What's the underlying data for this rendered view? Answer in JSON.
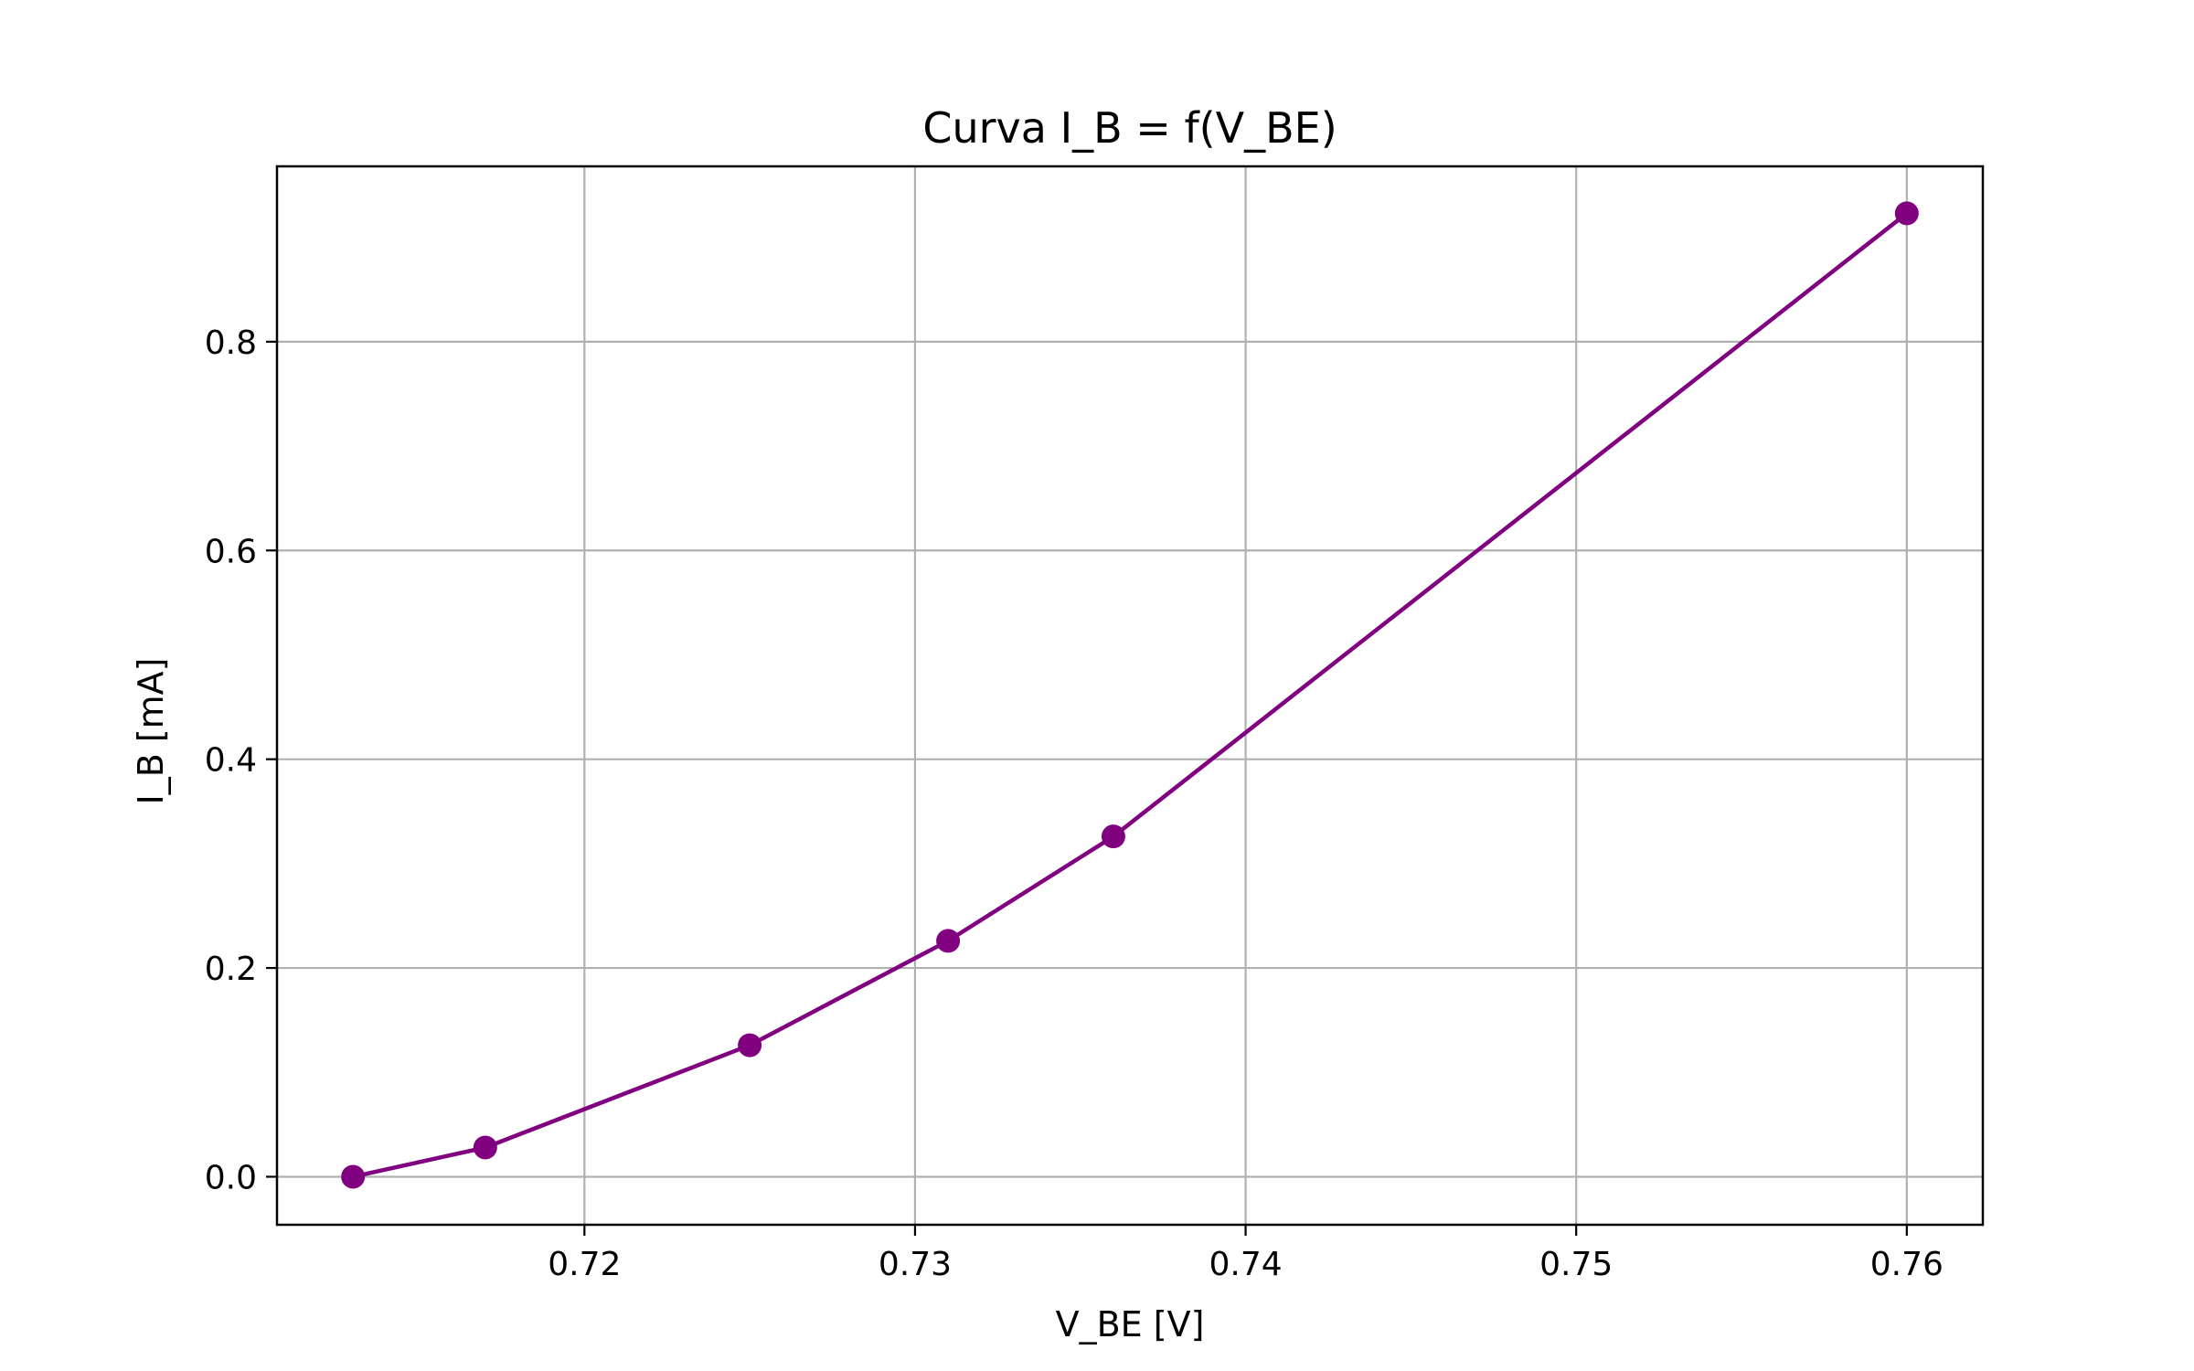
{
  "chart_data": {
    "type": "line",
    "title": "Curva I_B = f(V_BE)",
    "xlabel": "V_BE [V]",
    "ylabel": "I_B [mA]",
    "xlim": [
      0.7107,
      0.7623
    ],
    "ylim": [
      -0.046,
      0.968
    ],
    "xticks": [
      0.72,
      0.73,
      0.74,
      0.75,
      0.76
    ],
    "xtick_labels": [
      "0.72",
      "0.73",
      "0.74",
      "0.75",
      "0.76"
    ],
    "yticks": [
      0.0,
      0.2,
      0.4,
      0.6,
      0.8
    ],
    "ytick_labels": [
      "0.0",
      "0.2",
      "0.4",
      "0.6",
      "0.8"
    ],
    "grid": true,
    "series": [
      {
        "color": "#800080",
        "marker": "circle",
        "x": [
          0.713,
          0.717,
          0.725,
          0.731,
          0.736,
          0.76
        ],
        "y": [
          0.0,
          0.028,
          0.126,
          0.226,
          0.326,
          0.923
        ]
      }
    ]
  }
}
